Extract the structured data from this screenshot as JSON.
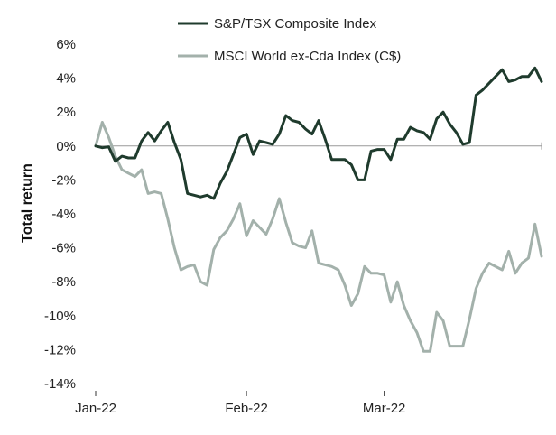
{
  "colors": {
    "tsx": "#1f3b2d",
    "msci": "#a3b1ab",
    "zero_line": "#999999"
  },
  "chart_data": {
    "type": "line",
    "title": "",
    "xlabel": "",
    "ylabel": "Total return",
    "ylim": [
      -14,
      6
    ],
    "yticks": [
      -14,
      -12,
      -10,
      -8,
      -6,
      -4,
      -2,
      0,
      2,
      4,
      6
    ],
    "ytick_labels": [
      "-14%",
      "-12%",
      "-10%",
      "-8%",
      "-6%",
      "-4%",
      "-2%",
      "0%",
      "2%",
      "4%",
      "6%"
    ],
    "xlim": [
      0,
      68
    ],
    "xticks": [
      {
        "x": 0,
        "label": "Jan-22"
      },
      {
        "x": 23,
        "label": "Feb-22"
      },
      {
        "x": 44,
        "label": "Mar-22"
      }
    ],
    "grid": false,
    "legend": "top-center",
    "series": [
      {
        "name": "S&P/TSX Composite Index",
        "x": [
          0,
          1,
          2,
          3,
          4,
          5,
          6,
          7,
          8,
          9,
          10,
          11,
          12,
          13,
          14,
          15,
          16,
          17,
          18,
          19,
          20,
          21,
          22,
          23,
          24,
          25,
          26,
          27,
          28,
          29,
          30,
          31,
          32,
          33,
          34,
          35,
          36,
          37,
          38,
          39,
          40,
          41,
          42,
          43,
          44,
          45,
          46,
          47,
          48,
          49,
          50,
          51,
          52,
          53,
          54,
          55,
          56,
          57,
          58,
          59,
          60,
          61,
          62,
          63,
          64,
          65,
          66,
          67,
          68
        ],
        "values": [
          0.0,
          -0.1,
          -0.05,
          -0.9,
          -0.6,
          -0.7,
          -0.7,
          0.3,
          0.8,
          0.3,
          0.9,
          1.4,
          0.2,
          -0.8,
          -2.8,
          -2.9,
          -3.0,
          -2.9,
          -3.1,
          -2.2,
          -1.5,
          -0.5,
          0.5,
          0.7,
          -0.5,
          0.3,
          0.2,
          0.1,
          0.7,
          1.8,
          1.5,
          1.4,
          1.0,
          0.7,
          1.5,
          0.4,
          -0.8,
          -0.8,
          -0.8,
          -1.1,
          -2.0,
          -2.0,
          -0.3,
          -0.2,
          -0.2,
          -0.8,
          0.4,
          0.4,
          1.1,
          0.9,
          0.8,
          0.4,
          1.6,
          2.0,
          1.3,
          0.8,
          0.1,
          0.2,
          3.0,
          3.3,
          3.7,
          4.1,
          4.5,
          3.8,
          3.9,
          4.1,
          4.1,
          4.6,
          3.8
        ]
      },
      {
        "name": "MSCI World ex-Cda Index (C$)",
        "x": [
          0,
          1,
          2,
          3,
          4,
          5,
          6,
          7,
          8,
          9,
          10,
          11,
          12,
          13,
          14,
          15,
          16,
          17,
          18,
          19,
          20,
          21,
          22,
          23,
          24,
          25,
          26,
          27,
          28,
          29,
          30,
          31,
          32,
          33,
          34,
          35,
          36,
          37,
          38,
          39,
          40,
          41,
          42,
          43,
          44,
          45,
          46,
          47,
          48,
          49,
          50,
          51,
          52,
          53,
          54,
          55,
          56,
          57,
          58,
          59,
          60,
          61,
          62,
          63,
          64,
          65,
          66,
          67,
          68
        ],
        "values": [
          0.0,
          1.4,
          0.5,
          -0.6,
          -1.4,
          -1.6,
          -1.8,
          -1.4,
          -2.8,
          -2.7,
          -2.8,
          -4.3,
          -6.0,
          -7.3,
          -7.1,
          -7.0,
          -8.0,
          -8.2,
          -6.1,
          -5.4,
          -5.0,
          -4.3,
          -3.4,
          -5.3,
          -4.4,
          -4.8,
          -5.2,
          -4.3,
          -3.1,
          -4.5,
          -5.7,
          -5.9,
          -6.0,
          -5.0,
          -6.9,
          -7.0,
          -7.1,
          -7.3,
          -8.2,
          -9.4,
          -8.7,
          -7.1,
          -7.5,
          -7.5,
          -7.6,
          -9.2,
          -8.0,
          -9.4,
          -10.3,
          -11.0,
          -12.1,
          -12.1,
          -9.8,
          -10.3,
          -11.8,
          -11.8,
          -11.8,
          -10.2,
          -8.4,
          -7.5,
          -6.9,
          -7.1,
          -7.3,
          -6.2,
          -7.5,
          -6.9,
          -6.6,
          -4.6,
          -6.5
        ]
      }
    ]
  }
}
